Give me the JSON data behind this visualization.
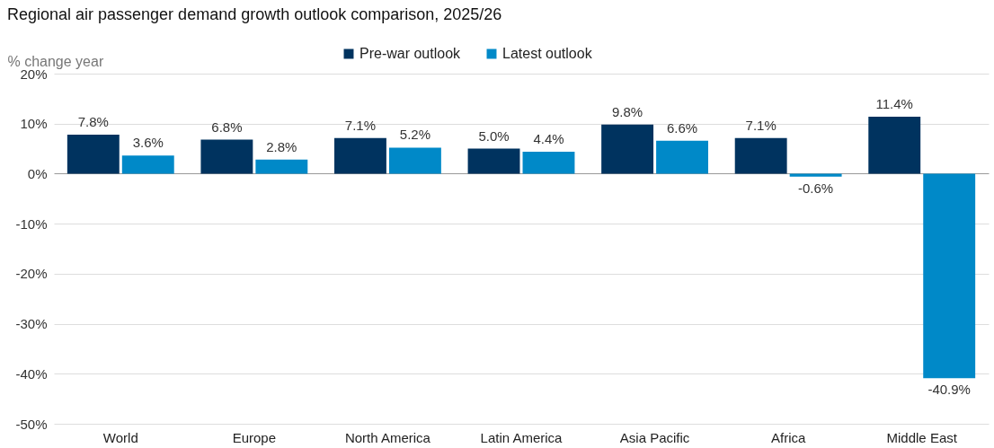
{
  "chart_data": {
    "type": "bar",
    "title": "Regional air passenger demand growth outlook comparison, 2025/26",
    "ylabel": "% change year",
    "categories": [
      "World",
      "Europe",
      "North America",
      "Latin America",
      "Asia Pacific",
      "Africa",
      "Middle East"
    ],
    "series": [
      {
        "name": "Pre-war outlook",
        "color": "#00335f",
        "values": [
          7.8,
          6.8,
          7.1,
          5.0,
          9.8,
          7.1,
          11.4
        ],
        "value_labels": [
          "7.8%",
          "6.8%",
          "7.1%",
          "5.0%",
          "9.8%",
          "7.1%",
          "11.4%"
        ]
      },
      {
        "name": "Latest outlook",
        "color": "#0089c8",
        "values": [
          3.6,
          2.8,
          5.2,
          4.4,
          6.6,
          -0.6,
          -40.9
        ],
        "value_labels": [
          "3.6%",
          "2.8%",
          "5.2%",
          "4.4%",
          "6.6%",
          "-0.6%",
          "-40.9%"
        ]
      }
    ],
    "ylim": [
      -50,
      20
    ],
    "yticks": [
      {
        "value": -50,
        "label": "-50%"
      },
      {
        "value": -40,
        "label": "-40%"
      },
      {
        "value": -30,
        "label": "-30%"
      },
      {
        "value": -20,
        "label": "-20%"
      },
      {
        "value": -10,
        "label": "-10%"
      },
      {
        "value": 0,
        "label": "0%"
      },
      {
        "value": 10,
        "label": "10%"
      },
      {
        "value": 20,
        "label": "20%"
      }
    ],
    "grid": "y",
    "legend": "top"
  }
}
